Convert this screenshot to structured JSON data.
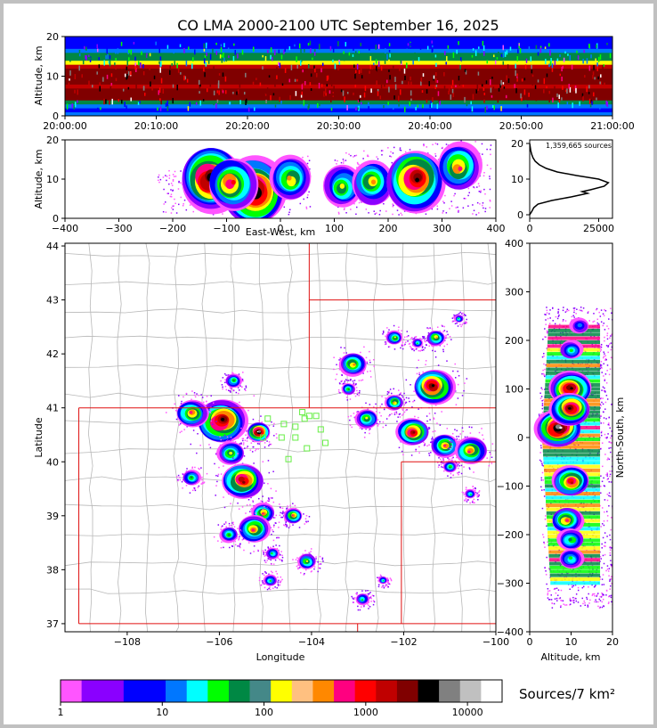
{
  "title": "CO LMA 2000-2100 UTC September 16, 2025",
  "colors": {
    "state_border": "#e01010",
    "county_border": "#b8b8b8",
    "station_marker": "#66ee44",
    "profile_line": "#000000"
  },
  "chart_data": [
    {
      "id": "altitude-time",
      "type": "heatmap",
      "ylabel": "Altitude, km",
      "ylim": [
        0,
        20
      ],
      "yticks": [
        "0",
        "10",
        "20"
      ],
      "xticks": [
        "20:00:00",
        "20:10:00",
        "20:20:00",
        "20:30:00",
        "20:40:00",
        "20:50:00",
        "21:00:00"
      ],
      "core_altitude_km": [
        4,
        13
      ]
    },
    {
      "id": "altitude-eastwest",
      "type": "heatmap",
      "xlabel": "East-West, km",
      "ylabel": "Altitude, km",
      "xlim": [
        -400,
        400
      ],
      "ylim": [
        0,
        20
      ],
      "xticks": [
        "−400",
        "−300",
        "−200",
        "−100",
        "0",
        "100",
        "200",
        "300",
        "400"
      ],
      "yticks": [
        "0",
        "10",
        "20"
      ],
      "cells": [
        {
          "x": -130,
          "alt": 10,
          "intensity": 0.95
        },
        {
          "x": -50,
          "alt": 7,
          "intensity": 1.0
        },
        {
          "x": -90,
          "alt": 9,
          "intensity": 0.7
        },
        {
          "x": 20,
          "alt": 10,
          "intensity": 0.55
        },
        {
          "x": 115,
          "alt": 8,
          "intensity": 0.5
        },
        {
          "x": 170,
          "alt": 9,
          "intensity": 0.55
        },
        {
          "x": 250,
          "alt": 10,
          "intensity": 0.9
        },
        {
          "x": 330,
          "alt": 13,
          "intensity": 0.6
        }
      ]
    },
    {
      "id": "altitude-histogram",
      "type": "line",
      "annotation": "1,359,665 sources",
      "xlim": [
        0,
        30000
      ],
      "ylim": [
        0,
        20
      ],
      "xticks": [
        "0",
        "25000"
      ],
      "yticks": [
        "0",
        "10",
        "20"
      ],
      "profile": [
        {
          "alt": 0,
          "count": 0
        },
        {
          "alt": 1,
          "count": 800
        },
        {
          "alt": 2,
          "count": 1500
        },
        {
          "alt": 3,
          "count": 3000
        },
        {
          "alt": 4,
          "count": 8000
        },
        {
          "alt": 5,
          "count": 15000
        },
        {
          "alt": 6,
          "count": 21000
        },
        {
          "alt": 6.5,
          "count": 19000
        },
        {
          "alt": 7,
          "count": 22000
        },
        {
          "alt": 8,
          "count": 27000
        },
        {
          "alt": 9,
          "count": 28500
        },
        {
          "alt": 10,
          "count": 25000
        },
        {
          "alt": 11,
          "count": 17000
        },
        {
          "alt": 12,
          "count": 10000
        },
        {
          "alt": 13,
          "count": 6000
        },
        {
          "alt": 14,
          "count": 3500
        },
        {
          "alt": 15,
          "count": 2000
        },
        {
          "alt": 16,
          "count": 1200
        },
        {
          "alt": 17,
          "count": 700
        },
        {
          "alt": 18,
          "count": 400
        },
        {
          "alt": 19,
          "count": 200
        },
        {
          "alt": 20,
          "count": 0
        }
      ]
    },
    {
      "id": "plan-view",
      "type": "heatmap",
      "xlabel": "Longitude",
      "ylabel": "Latitude",
      "xlim": [
        -109.35,
        -100.0
      ],
      "ylim": [
        36.85,
        44.05
      ],
      "xticks": [
        "−108",
        "−106",
        "−104",
        "−102",
        "−100"
      ],
      "yticks": [
        "37",
        "38",
        "39",
        "40",
        "41",
        "42",
        "43",
        "44"
      ],
      "cells": [
        {
          "lon": -105.95,
          "lat": 40.75,
          "r": 0.55,
          "intensity": 0.9
        },
        {
          "lon": -105.15,
          "lat": 40.55,
          "r": 0.25,
          "intensity": 1.0
        },
        {
          "lon": -106.6,
          "lat": 40.9,
          "r": 0.35,
          "intensity": 0.6
        },
        {
          "lon": -105.7,
          "lat": 41.5,
          "r": 0.18,
          "intensity": 0.45
        },
        {
          "lon": -105.75,
          "lat": 40.15,
          "r": 0.3,
          "intensity": 0.5
        },
        {
          "lon": -105.5,
          "lat": 39.65,
          "r": 0.45,
          "intensity": 0.8
        },
        {
          "lon": -106.6,
          "lat": 39.7,
          "r": 0.2,
          "intensity": 0.45
        },
        {
          "lon": -105.05,
          "lat": 39.05,
          "r": 0.25,
          "intensity": 0.6
        },
        {
          "lon": -104.4,
          "lat": 39.0,
          "r": 0.2,
          "intensity": 0.6
        },
        {
          "lon": -105.25,
          "lat": 38.75,
          "r": 0.35,
          "intensity": 0.65
        },
        {
          "lon": -105.8,
          "lat": 38.65,
          "r": 0.2,
          "intensity": 0.45
        },
        {
          "lon": -104.1,
          "lat": 38.15,
          "r": 0.2,
          "intensity": 0.5
        },
        {
          "lon": -104.85,
          "lat": 38.3,
          "r": 0.15,
          "intensity": 0.4
        },
        {
          "lon": -104.9,
          "lat": 37.8,
          "r": 0.15,
          "intensity": 0.35
        },
        {
          "lon": -102.9,
          "lat": 37.45,
          "r": 0.15,
          "intensity": 0.4
        },
        {
          "lon": -102.45,
          "lat": 37.8,
          "r": 0.1,
          "intensity": 0.35
        },
        {
          "lon": -103.1,
          "lat": 41.8,
          "r": 0.3,
          "intensity": 0.55
        },
        {
          "lon": -103.2,
          "lat": 41.35,
          "r": 0.15,
          "intensity": 0.45
        },
        {
          "lon": -102.8,
          "lat": 40.8,
          "r": 0.25,
          "intensity": 0.5
        },
        {
          "lon": -102.2,
          "lat": 41.1,
          "r": 0.2,
          "intensity": 0.55
        },
        {
          "lon": -101.35,
          "lat": 41.4,
          "r": 0.45,
          "intensity": 0.85
        },
        {
          "lon": -101.3,
          "lat": 42.3,
          "r": 0.2,
          "intensity": 0.55
        },
        {
          "lon": -101.7,
          "lat": 42.2,
          "r": 0.12,
          "intensity": 0.4
        },
        {
          "lon": -102.2,
          "lat": 42.3,
          "r": 0.18,
          "intensity": 0.5
        },
        {
          "lon": -101.8,
          "lat": 40.55,
          "r": 0.35,
          "intensity": 0.8
        },
        {
          "lon": -101.1,
          "lat": 40.3,
          "r": 0.3,
          "intensity": 0.6
        },
        {
          "lon": -100.55,
          "lat": 40.2,
          "r": 0.35,
          "intensity": 0.6
        },
        {
          "lon": -101.0,
          "lat": 39.9,
          "r": 0.15,
          "intensity": 0.45
        },
        {
          "lon": -100.55,
          "lat": 39.4,
          "r": 0.12,
          "intensity": 0.4
        },
        {
          "lon": -100.8,
          "lat": 42.65,
          "r": 0.1,
          "intensity": 0.35
        }
      ],
      "stations": [
        {
          "lon": -104.95,
          "lat": 40.8
        },
        {
          "lon": -104.6,
          "lat": 40.7
        },
        {
          "lon": -104.35,
          "lat": 40.65
        },
        {
          "lon": -104.15,
          "lat": 40.8
        },
        {
          "lon": -104.2,
          "lat": 40.92
        },
        {
          "lon": -104.05,
          "lat": 40.85
        },
        {
          "lon": -103.9,
          "lat": 40.85
        },
        {
          "lon": -104.35,
          "lat": 40.45
        },
        {
          "lon": -104.65,
          "lat": 40.45
        },
        {
          "lon": -105.05,
          "lat": 40.45
        },
        {
          "lon": -104.1,
          "lat": 40.25
        },
        {
          "lon": -103.8,
          "lat": 40.6
        },
        {
          "lon": -103.7,
          "lat": 40.35
        },
        {
          "lon": -104.5,
          "lat": 40.05
        }
      ]
    },
    {
      "id": "north-south-altitude",
      "type": "heatmap",
      "xlabel": "Altitude, km",
      "ylabel": "North-South, km",
      "xlim": [
        0,
        20
      ],
      "ylim": [
        -400,
        400
      ],
      "xticks": [
        "0",
        "10",
        "20"
      ],
      "yticks": [
        "400",
        "300",
        "200",
        "100",
        "0",
        "−100",
        "−200",
        "−300",
        "−400"
      ],
      "cells": [
        {
          "ns": 20,
          "alt": 7,
          "intensity": 1.0
        },
        {
          "ns": 100,
          "alt": 10,
          "intensity": 0.9
        },
        {
          "ns": 60,
          "alt": 10,
          "intensity": 0.85
        },
        {
          "ns": -90,
          "alt": 10,
          "intensity": 0.75
        },
        {
          "ns": -170,
          "alt": 9,
          "intensity": 0.6
        },
        {
          "ns": -210,
          "alt": 10,
          "intensity": 0.45
        },
        {
          "ns": -250,
          "alt": 10,
          "intensity": 0.4
        },
        {
          "ns": 180,
          "alt": 10,
          "intensity": 0.35
        },
        {
          "ns": 230,
          "alt": 12,
          "intensity": 0.25
        }
      ]
    }
  ],
  "colorbar": {
    "label": "Sources/7 km²",
    "ticks": [
      "1",
      "10",
      "100",
      "1000",
      "10000"
    ],
    "colors": [
      "#ff55ff",
      "#8a00ff",
      "#8a00ff",
      "#0000ff",
      "#0000ff",
      "#0077ff",
      "#00ffff",
      "#00ff00",
      "#008844",
      "#448888",
      "#ffff00",
      "#ffc080",
      "#ff8800",
      "#ff0080",
      "#ff0000",
      "#c00000",
      "#800000",
      "#000000",
      "#808080",
      "#c0c0c0",
      "#ffffff"
    ]
  }
}
